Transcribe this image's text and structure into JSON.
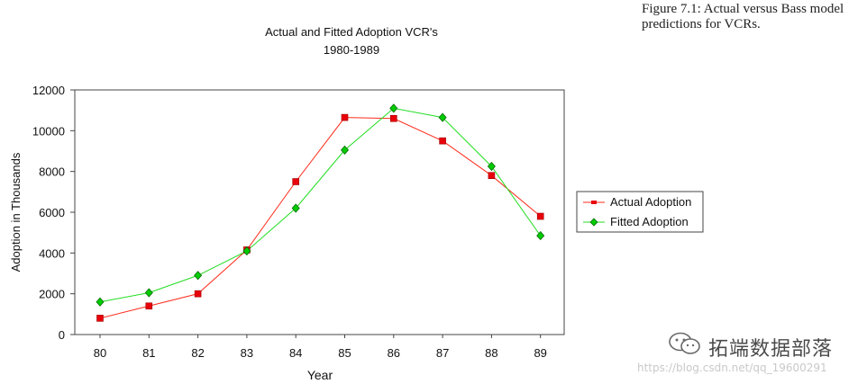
{
  "caption": "Figure 7.1:   Actual versus Bass model predictions for VCRs.",
  "watermark": {
    "name": "拓端数据部落",
    "url": "https://blog.csdn.net/qq_19600291"
  },
  "colors": {
    "actual": "#ff2a1a",
    "actual_marker": "#e8000b",
    "fitted": "#22dd22",
    "fitted_marker": "#00cc00"
  },
  "chart_data": {
    "type": "line",
    "title": "Actual and Fitted Adoption VCR's",
    "subtitle": "1980-1989",
    "xlabel": "Year",
    "ylabel": "Adoption in Thousands",
    "categories": [
      "80",
      "81",
      "82",
      "83",
      "84",
      "85",
      "86",
      "87",
      "88",
      "89"
    ],
    "y_ticks": [
      "0",
      "2000",
      "4000",
      "6000",
      "8000",
      "10000",
      "12000"
    ],
    "ylim": [
      0,
      12000
    ],
    "grid": false,
    "legend_position": "right",
    "series": [
      {
        "name": "Actual Adoption",
        "values": [
          800,
          1400,
          2000,
          4150,
          7500,
          10650,
          10600,
          9500,
          7800,
          5800
        ]
      },
      {
        "name": "Fitted Adoption",
        "values": [
          1600,
          2050,
          2900,
          4100,
          6200,
          9050,
          11100,
          10650,
          8250,
          4850
        ]
      }
    ]
  }
}
